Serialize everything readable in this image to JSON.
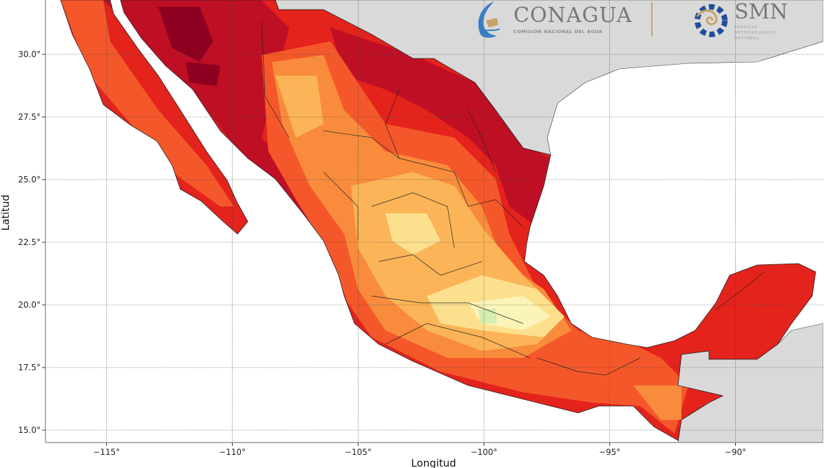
{
  "map": {
    "xlabel": "Longitud",
    "ylabel": "Latitud",
    "x_ticks": [
      "−115°",
      "−110°",
      "−105°",
      "−100°",
      "−95°",
      "−90°"
    ],
    "x_tick_values": [
      -115,
      -110,
      -105,
      -100,
      -95,
      -90
    ],
    "y_ticks": [
      "30.0°",
      "27.5°",
      "25.0°",
      "22.5°",
      "20.0°",
      "17.5°",
      "15.0°"
    ],
    "y_tick_values": [
      30,
      27.5,
      25,
      22.5,
      20,
      17.5,
      15
    ],
    "grid": true,
    "palette": [
      "#8e0020",
      "#bf0f25",
      "#e3231c",
      "#f4582a",
      "#f88c3c",
      "#fbb457",
      "#fde08d",
      "#fbf4b8",
      "#d6ecb0"
    ],
    "neighbor_land_color": "#d9d9d9"
  },
  "logos": {
    "conagua": {
      "name": "CONAGUA",
      "subtitle": "COMISIÓN NACIONAL DEL AGUA"
    },
    "smn": {
      "name": "SMN",
      "subtitle_lines": [
        "SERVICIO",
        "METEOROLÓGICO",
        "NACIONAL"
      ]
    }
  }
}
